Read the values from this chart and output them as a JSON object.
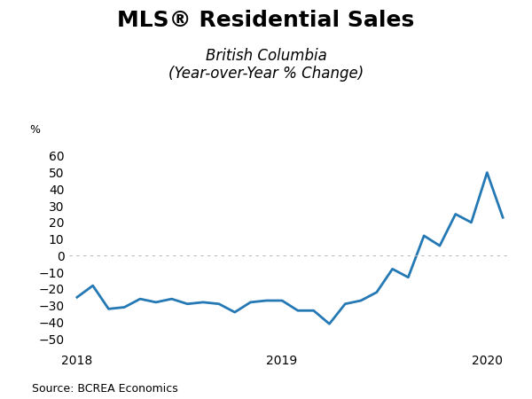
{
  "title": "MLS® Residential Sales",
  "subtitle_line1": "British Columbia",
  "subtitle_line2": "(Year-over-Year % Change)",
  "ylabel_top": "%",
  "source": "Source: BCREA Economics",
  "line_color": "#2478b4",
  "line_width": 2.0,
  "background_color": "#ffffff",
  "ylim": [
    -55,
    65
  ],
  "yticks": [
    -50,
    -40,
    -30,
    -20,
    -10,
    0,
    10,
    20,
    30,
    40,
    50,
    60
  ],
  "y_values": [
    -25,
    -18,
    -32,
    -31,
    -26,
    -28,
    -26,
    -29,
    -28,
    -29,
    -34,
    -28,
    -27,
    -27,
    -33,
    -33,
    -41,
    -29,
    -27,
    -22,
    -8,
    -13,
    12,
    6,
    25,
    20,
    50,
    23
  ],
  "xtick_positions": [
    0,
    13,
    26
  ],
  "xtick_labels": [
    "2018",
    "2019",
    "2020"
  ],
  "title_fontsize": 18,
  "subtitle_fontsize": 12,
  "tick_fontsize": 10,
  "source_fontsize": 9,
  "ylabel_fontsize": 9
}
